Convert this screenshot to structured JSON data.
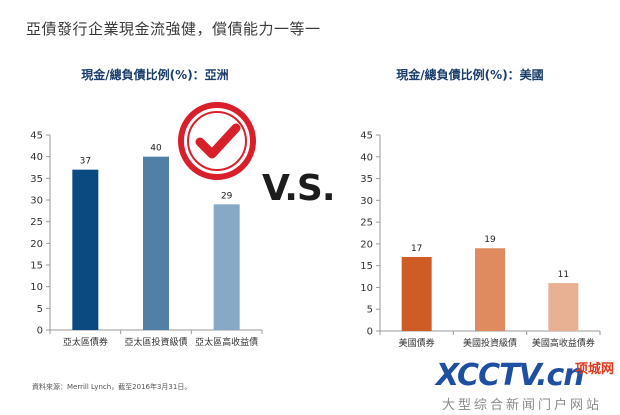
{
  "page": {
    "title": "亞債發行企業現金流強健，償債能力一等一",
    "vs_label": "V.S.",
    "source": "資料來源：Merrill Lynch，截至2016年3月31日。"
  },
  "watermark": {
    "logo": "XCCTV.cn",
    "badge": "项城网",
    "sub": "大型综合新闻门户网站"
  },
  "chart_data": [
    {
      "type": "bar",
      "title": "現金/總負債比例(%)：亞洲",
      "categories": [
        "亞太區債券",
        "亞太區投資級債",
        "亞太區高收益債"
      ],
      "values": [
        37,
        40,
        29
      ],
      "colors": [
        "#0b4a80",
        "#527fa6",
        "#87a8c6"
      ],
      "ylim": [
        0,
        45
      ],
      "yticks": [
        0,
        5,
        10,
        15,
        20,
        25,
        30,
        35,
        40,
        45
      ],
      "grid": false,
      "legend": "none"
    },
    {
      "type": "bar",
      "title": "現金/總負債比例(%)：美國",
      "categories": [
        "美國債券",
        "美國投資級債",
        "美國高收益債券"
      ],
      "values": [
        17,
        19,
        11
      ],
      "colors": [
        "#cf5c25",
        "#df8b5f",
        "#e9b193"
      ],
      "ylim": [
        0,
        45
      ],
      "yticks": [
        0,
        5,
        10,
        15,
        20,
        25,
        30,
        35,
        40,
        45
      ],
      "grid": false,
      "legend": "none"
    }
  ]
}
